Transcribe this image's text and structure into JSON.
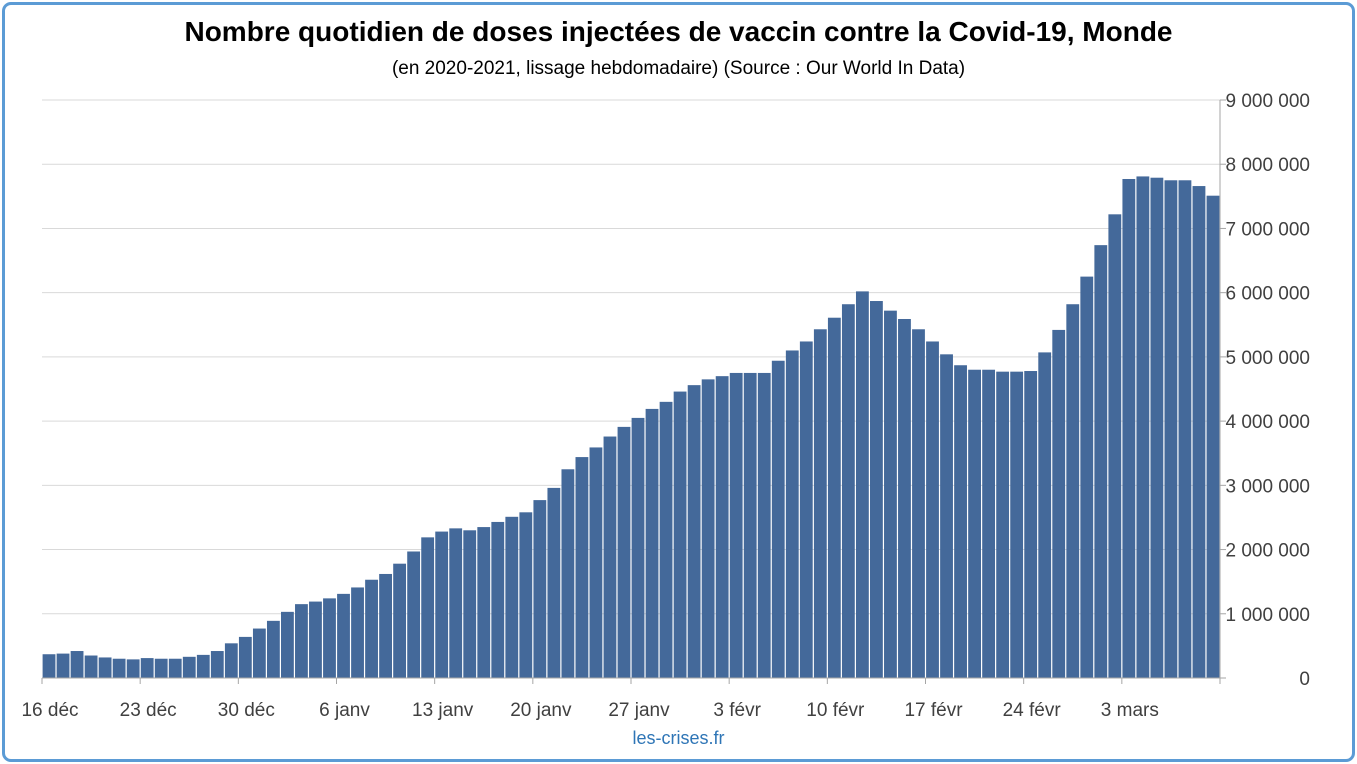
{
  "chart_data": {
    "type": "bar",
    "title": "Nombre quotidien de doses injectées de vaccin contre la Covid-19, Monde",
    "subtitle": "(en 2020-2021, lissage hebdomadaire) (Source : Our World In Data)",
    "xlabel": "",
    "ylabel": "",
    "ylim": [
      0,
      9000000
    ],
    "y_ticks": [
      0,
      1000000,
      2000000,
      3000000,
      4000000,
      5000000,
      6000000,
      7000000,
      8000000,
      9000000
    ],
    "y_tick_labels": [
      "0",
      "1 000 000",
      "2 000 000",
      "3 000 000",
      "4 000 000",
      "5 000 000",
      "6 000 000",
      "7 000 000",
      "8 000 000",
      "9 000 000"
    ],
    "x_tick_labels": [
      "16 déc",
      "23 déc",
      "30 déc",
      "6 janv",
      "13 janv",
      "20 janv",
      "27 janv",
      "3 févr",
      "10 févr",
      "17 févr",
      "24 févr",
      "3 mars"
    ],
    "x_tick_interval_days": 7,
    "y_axis_position": "right",
    "grid": true,
    "legend": "none",
    "bar_color": "#44699a",
    "values": [
      370000,
      380000,
      420000,
      350000,
      320000,
      300000,
      290000,
      310000,
      300000,
      300000,
      330000,
      360000,
      420000,
      540000,
      640000,
      770000,
      890000,
      1030000,
      1150000,
      1190000,
      1240000,
      1310000,
      1410000,
      1530000,
      1620000,
      1780000,
      1970000,
      2190000,
      2280000,
      2330000,
      2300000,
      2350000,
      2430000,
      2510000,
      2580000,
      2770000,
      2960000,
      3250000,
      3440000,
      3590000,
      3760000,
      3910000,
      4050000,
      4190000,
      4300000,
      4460000,
      4560000,
      4650000,
      4700000,
      4750000,
      4750000,
      4750000,
      4940000,
      5100000,
      5240000,
      5430000,
      5610000,
      5820000,
      6020000,
      5870000,
      5720000,
      5590000,
      5430000,
      5240000,
      5040000,
      4870000,
      4800000,
      4800000,
      4770000,
      4770000,
      4780000,
      5070000,
      5420000,
      5820000,
      6250000,
      6740000,
      7220000,
      7770000,
      7810000,
      7790000,
      7750000,
      7750000,
      7660000,
      7510000
    ]
  },
  "watermark": "les-crises.fr"
}
